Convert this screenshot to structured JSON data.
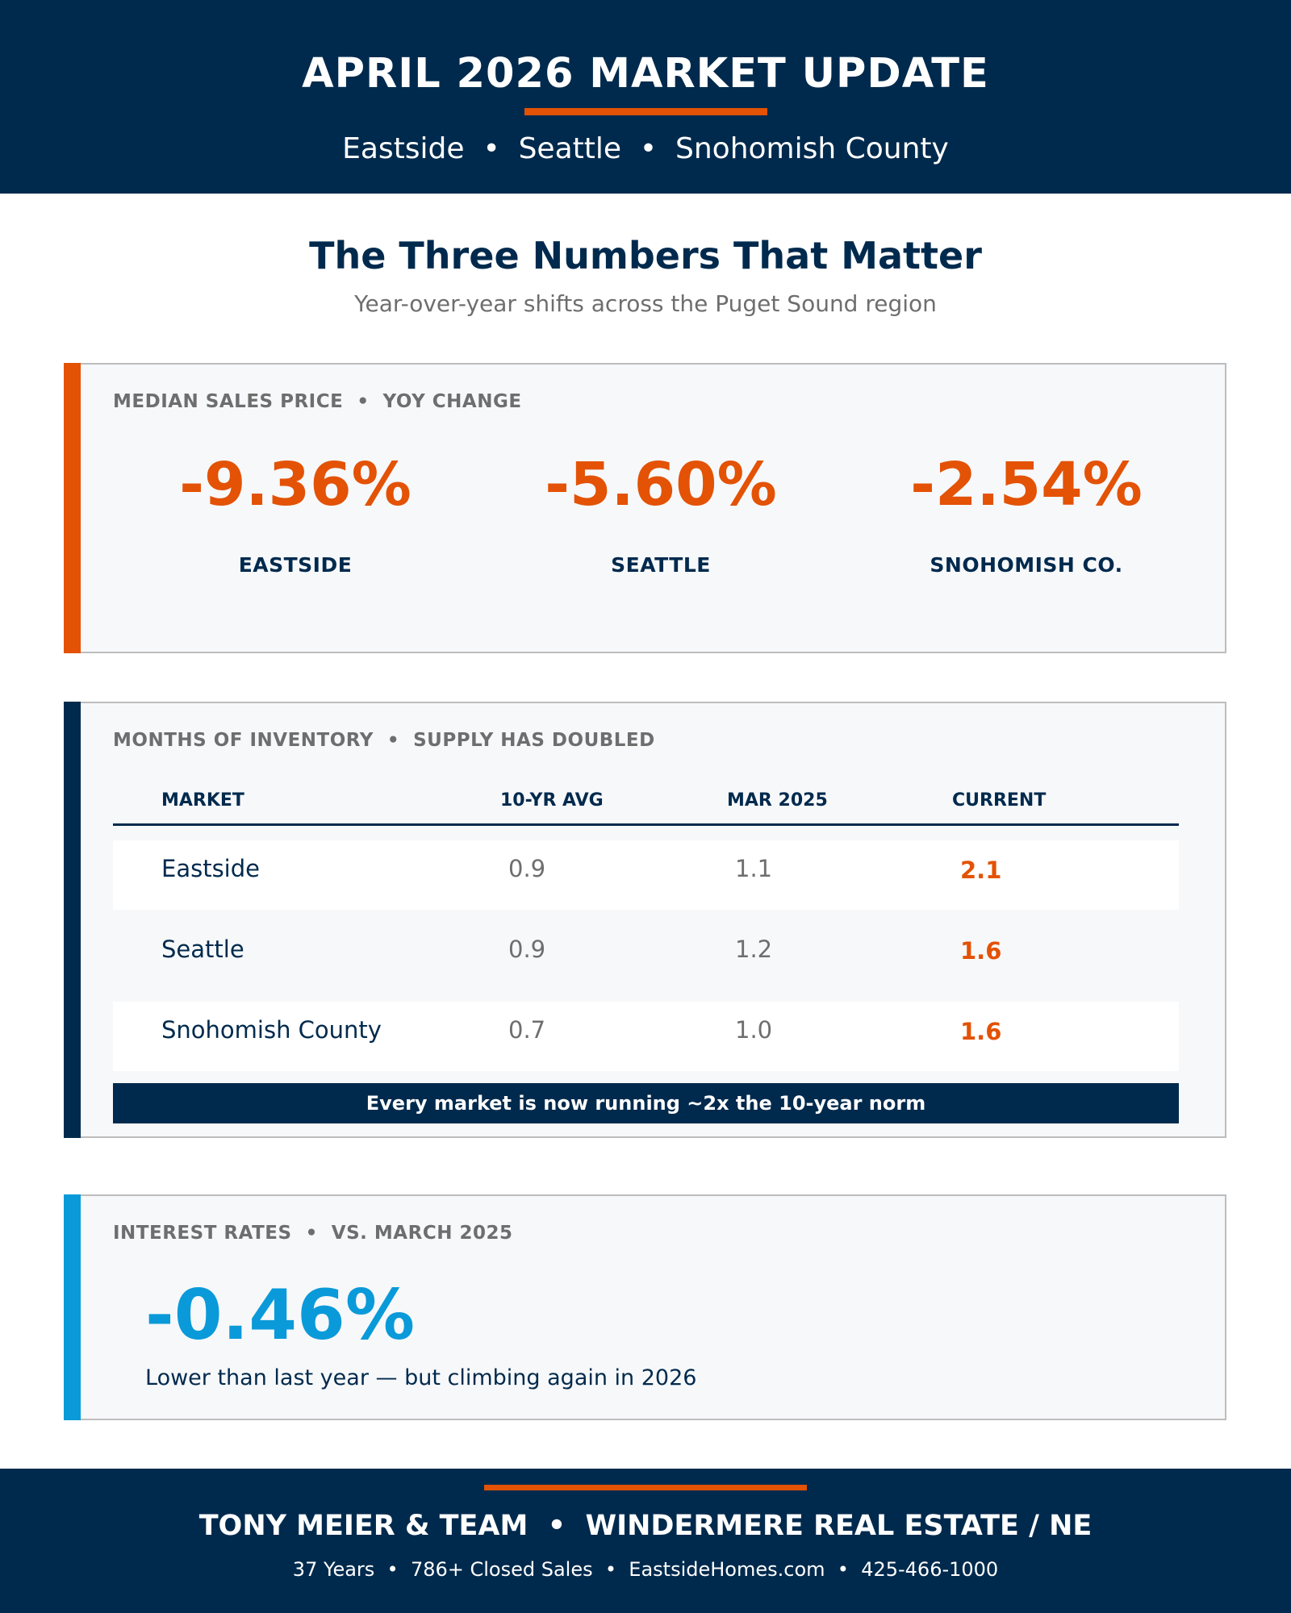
{
  "header": {
    "title": "APRIL 2026 MARKET UPDATE",
    "subtitle": "Eastside  •  Seattle  •  Snohomish County"
  },
  "section": {
    "title": "The Three Numbers That Matter",
    "subtitle": "Year-over-year shifts across the Puget Sound region"
  },
  "median_price": {
    "label": "MEDIAN SALES PRICE  •  YOY CHANGE",
    "accent": "#e35205",
    "stats": [
      {
        "value": "-9.36%",
        "market": "EASTSIDE"
      },
      {
        "value": "-5.60%",
        "market": "SEATTLE"
      },
      {
        "value": "-2.54%",
        "market": "SNOHOMISH CO."
      }
    ]
  },
  "inventory": {
    "label": "MONTHS OF INVENTORY  •  SUPPLY HAS DOUBLED",
    "accent": "#002a4d",
    "columns": [
      "MARKET",
      "10-YR AVG",
      "MAR 2025",
      "CURRENT"
    ],
    "rows": [
      [
        "Eastside",
        "0.9",
        "1.1",
        "2.1"
      ],
      [
        "Seattle",
        "0.9",
        "1.2",
        "1.6"
      ],
      [
        "Snohomish County",
        "0.7",
        "1.0",
        "1.6"
      ]
    ],
    "banner": "Every market is now running ~2x the 10-year norm"
  },
  "rates": {
    "label": "INTEREST RATES  •  VS. MARCH 2025",
    "accent": "#0a9ad9",
    "value": "-0.46%",
    "note": "Lower than last year — but climbing again in 2026"
  },
  "footer": {
    "title": "TONY MEIER & TEAM  •  WINDERMERE REAL ESTATE / NE",
    "details": "37 Years  •  786+ Closed Sales  •  EastsideHomes.com  •  425-466-1000"
  }
}
